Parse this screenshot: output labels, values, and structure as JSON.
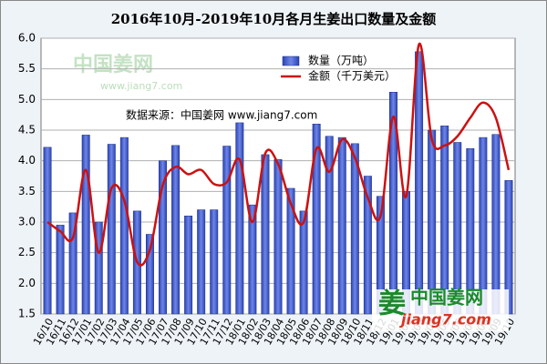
{
  "chart_data": {
    "type": "bar_line",
    "title": "2016年10月-2019年10月各月生姜出口数量及金额",
    "annotation": "数据来源：中国姜网 www.jiang7.com",
    "watermark": "中国姜网",
    "watermark_url": "www.jiang7.com",
    "logo": "中国姜网",
    "logo_url": "jiang7.com",
    "categories": [
      "16/10",
      "16/11",
      "16/12",
      "17/01",
      "17/02",
      "17/03",
      "17/04",
      "17/05",
      "17/06",
      "17/07",
      "17/08",
      "17/09",
      "17/10",
      "17/11",
      "17/12",
      "18/01",
      "18/02",
      "18/03",
      "18/04",
      "18/05",
      "18/06",
      "18/07",
      "18/08",
      "18/09",
      "18/10",
      "18/11",
      "18/12",
      "19/01",
      "19/02",
      "19/03",
      "19/04",
      "19/05",
      "19/06",
      "19/07",
      "19/08",
      "19/09",
      "19/10"
    ],
    "series": [
      {
        "name": "数量（万吨）",
        "type": "bar",
        "color": "#3a56c8",
        "values": [
          4.22,
          2.95,
          3.15,
          4.42,
          3.0,
          4.27,
          4.38,
          3.18,
          2.8,
          4.0,
          4.25,
          3.1,
          3.2,
          3.2,
          4.24,
          4.62,
          3.28,
          4.1,
          4.02,
          3.55,
          3.18,
          4.6,
          4.4,
          4.38,
          4.28,
          3.75,
          3.42,
          5.12,
          3.5,
          5.78,
          4.5,
          4.57,
          4.3,
          4.2,
          4.38,
          4.43,
          3.68
        ]
      },
      {
        "name": "金额（千万美元）",
        "type": "line",
        "color": "#cc1111",
        "values": [
          3.0,
          2.85,
          2.75,
          3.85,
          2.5,
          3.55,
          3.35,
          2.35,
          2.55,
          3.6,
          3.9,
          3.78,
          3.85,
          3.62,
          3.65,
          4.02,
          3.0,
          4.12,
          3.95,
          3.3,
          3.0,
          4.2,
          3.82,
          4.35,
          4.05,
          3.4,
          3.1,
          4.72,
          3.42,
          5.9,
          4.35,
          4.25,
          4.4,
          4.7,
          4.95,
          4.7,
          3.85
        ]
      }
    ],
    "ylim": [
      1.5,
      6.0
    ],
    "yticks": [
      1.5,
      {
        "value": 2,
        "label": "2.0"
      },
      2.5,
      {
        "value": 3,
        "label": "3.0"
      },
      3.5,
      {
        "value": 4,
        "label": "4.0"
      },
      4.5,
      {
        "value": 5,
        "label": "5.0"
      },
      5.5,
      {
        "value": 6,
        "label": "6.0"
      }
    ],
    "grid": true
  }
}
